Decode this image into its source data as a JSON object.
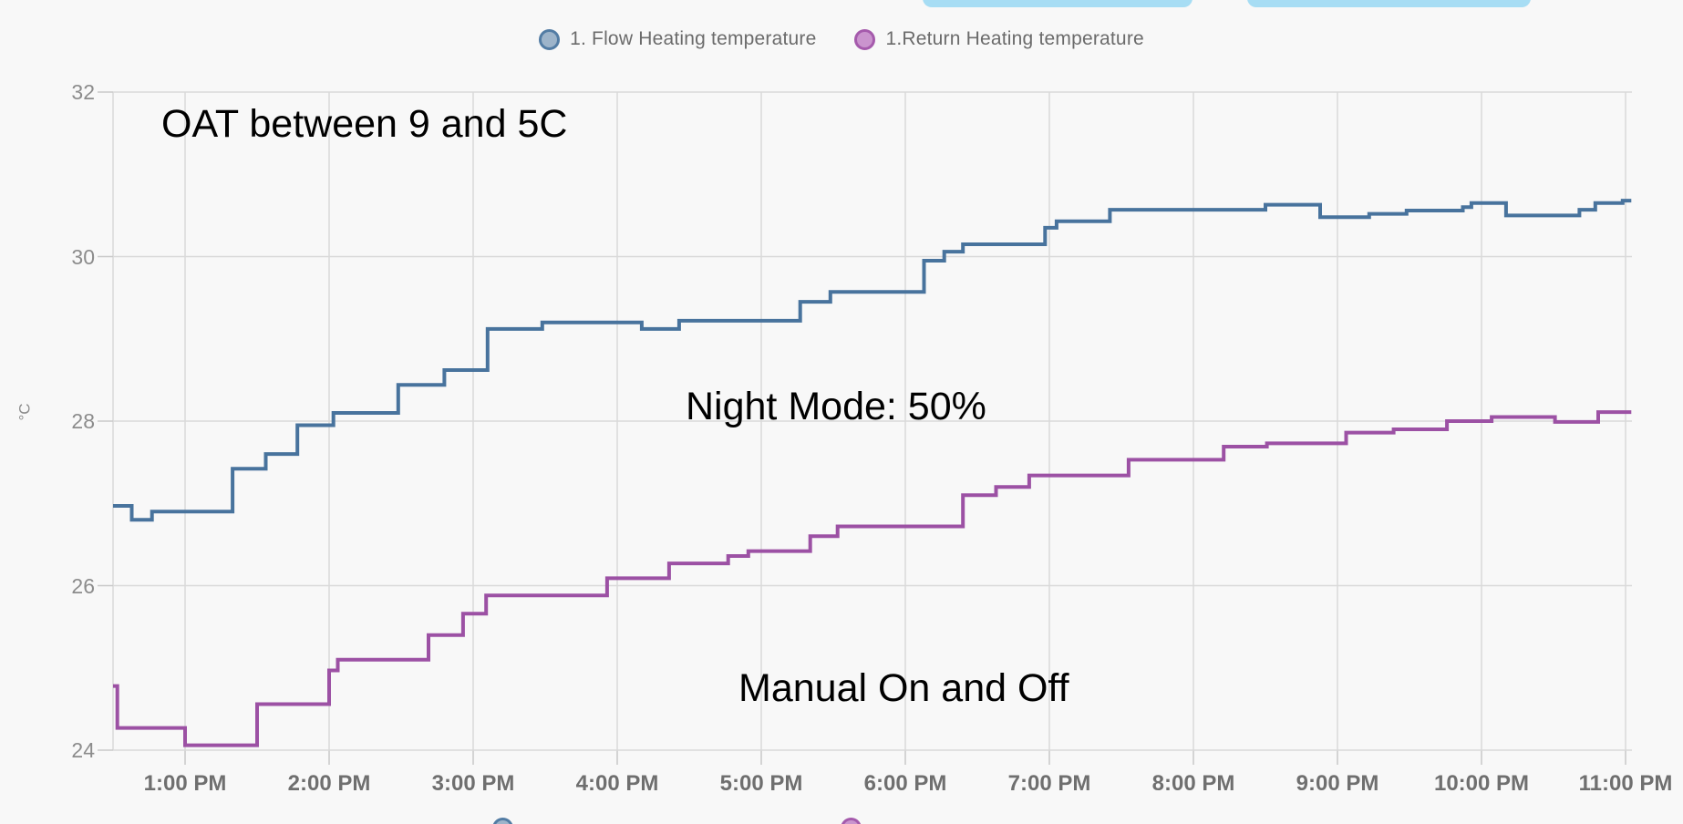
{
  "top_buttons": {
    "color": "#a7ddf4",
    "items": [
      {
        "name": "top-pill-1"
      },
      {
        "name": "top-pill-2"
      }
    ]
  },
  "legend_markers": [
    {
      "fill": "#9db4ca",
      "border": "#527ca4"
    },
    {
      "fill": "#ca94ce",
      "border": "#a55aac"
    }
  ],
  "chart_data": {
    "type": "line",
    "step": true,
    "title": "",
    "ylabel": "°C",
    "xlabel": "",
    "grid": true,
    "legend_position": "top-center",
    "ylim": [
      24,
      32
    ],
    "y_ticks": [
      "32",
      "30",
      "28",
      "26",
      "24"
    ],
    "y_tick_values": [
      32,
      30,
      28,
      26,
      24
    ],
    "x_ticks": [
      "1:00 PM",
      "2:00 PM",
      "3:00 PM",
      "4:00 PM",
      "5:00 PM",
      "6:00 PM",
      "7:00 PM",
      "8:00 PM",
      "9:00 PM",
      "10:00 PM",
      "11:00 PM"
    ],
    "x_tick_hours": [
      13,
      14,
      15,
      16,
      17,
      18,
      19,
      20,
      21,
      22,
      23
    ],
    "x_domain_hours": [
      12.5,
      23.04
    ],
    "series": [
      {
        "name": "1. Flow Heating temperature",
        "color": "#48739d",
        "points": [
          [
            12.5,
            26.97
          ],
          [
            12.63,
            26.8
          ],
          [
            12.77,
            26.9
          ],
          [
            13.33,
            27.42
          ],
          [
            13.56,
            27.6
          ],
          [
            13.78,
            27.95
          ],
          [
            14.03,
            28.1
          ],
          [
            14.48,
            28.44
          ],
          [
            14.8,
            28.62
          ],
          [
            15.1,
            29.12
          ],
          [
            15.48,
            29.2
          ],
          [
            16.17,
            29.12
          ],
          [
            16.43,
            29.22
          ],
          [
            17.27,
            29.45
          ],
          [
            17.48,
            29.57
          ],
          [
            18.13,
            29.95
          ],
          [
            18.27,
            30.06
          ],
          [
            18.4,
            30.15
          ],
          [
            18.97,
            30.35
          ],
          [
            19.05,
            30.43
          ],
          [
            19.42,
            30.57
          ],
          [
            20.5,
            30.63
          ],
          [
            20.88,
            30.48
          ],
          [
            21.22,
            30.52
          ],
          [
            21.48,
            30.56
          ],
          [
            21.87,
            30.6
          ],
          [
            21.93,
            30.65
          ],
          [
            22.17,
            30.5
          ],
          [
            22.68,
            30.57
          ],
          [
            22.79,
            30.65
          ],
          [
            22.98,
            30.68
          ],
          [
            23.04,
            30.68
          ]
        ]
      },
      {
        "name": "1.Return Heating temperature",
        "color": "#9c51a4",
        "points": [
          [
            12.5,
            24.78
          ],
          [
            12.53,
            24.27
          ],
          [
            13.0,
            24.06
          ],
          [
            13.5,
            24.56
          ],
          [
            14.0,
            24.97
          ],
          [
            14.06,
            25.1
          ],
          [
            14.69,
            25.4
          ],
          [
            14.93,
            25.66
          ],
          [
            15.09,
            25.88
          ],
          [
            15.93,
            26.09
          ],
          [
            16.36,
            26.27
          ],
          [
            16.77,
            26.36
          ],
          [
            16.91,
            26.42
          ],
          [
            17.34,
            26.6
          ],
          [
            17.53,
            26.72
          ],
          [
            18.4,
            27.1
          ],
          [
            18.63,
            27.2
          ],
          [
            18.86,
            27.34
          ],
          [
            19.55,
            27.53
          ],
          [
            20.21,
            27.69
          ],
          [
            20.51,
            27.73
          ],
          [
            21.06,
            27.86
          ],
          [
            21.39,
            27.9
          ],
          [
            21.76,
            28.0
          ],
          [
            22.07,
            28.05
          ],
          [
            22.51,
            27.99
          ],
          [
            22.81,
            28.11
          ],
          [
            23.04,
            28.11
          ]
        ]
      }
    ],
    "annotations": [
      {
        "text": "OAT between 9 and 5C"
      },
      {
        "text": "Night Mode: 50%"
      },
      {
        "text": "Manual On and Off"
      }
    ]
  }
}
